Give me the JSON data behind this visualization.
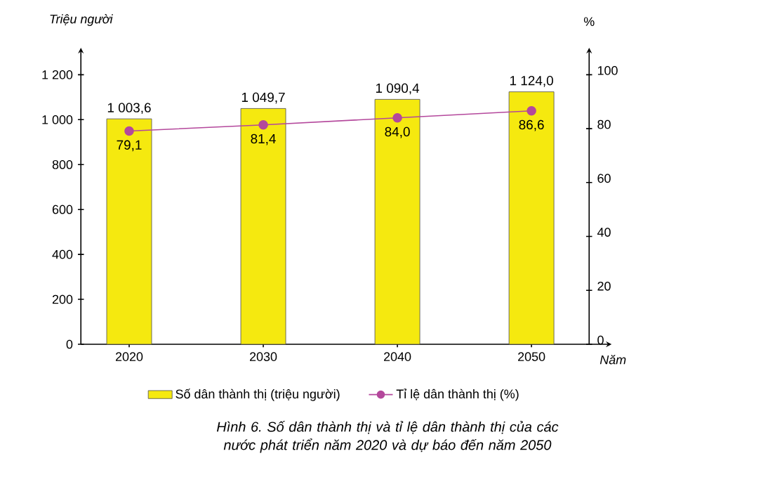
{
  "chart_data": {
    "type": "bar",
    "categories": [
      "2020",
      "2030",
      "2040",
      "2050"
    ],
    "series": [
      {
        "name": "Số dân thành thị (triệu người)",
        "color": "#f5e90f",
        "values": [
          1003.6,
          1049.7,
          1090.4,
          1124.0
        ],
        "value_labels": [
          "1 003,6",
          "1 049,7",
          "1 090,4",
          "1 124,0"
        ]
      },
      {
        "type": "line",
        "axis": "y2",
        "name": "Tỉ lệ dân thành thị (%)",
        "color": "#b4489c",
        "marker": "circle",
        "values": [
          79.1,
          81.4,
          84.0,
          86.6
        ],
        "value_labels": [
          "79,1",
          "81,4",
          "84,0",
          "86,6"
        ]
      }
    ],
    "ylim": [
      0,
      1320
    ],
    "yticks": [
      0,
      200,
      400,
      600,
      800,
      {
        "value": 1000,
        "label": "1 000"
      },
      {
        "value": 1200,
        "label": "1 200"
      }
    ],
    "y2lim": [
      0,
      110
    ],
    "y2ticks": [
      0,
      20,
      40,
      60,
      80,
      100
    ],
    "ylabel": "Triệu người",
    "y2label": "%",
    "xlabel": "Năm",
    "legend": "bottom",
    "annotations": [
      "Hình 6. Số dân thành thị và tỉ lệ dân thành thị của các nước phát triển năm 2020 và dự báo đến năm 2050"
    ]
  }
}
